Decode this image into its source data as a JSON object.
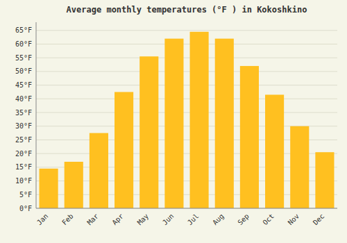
{
  "chart_data": {
    "type": "bar",
    "title": "Average monthly temperatures (°F ) in Kokoshkino",
    "categories": [
      "Jan",
      "Feb",
      "Mar",
      "Apr",
      "May",
      "Jun",
      "Jul",
      "Aug",
      "Sep",
      "Oct",
      "Nov",
      "Dec"
    ],
    "values": [
      14.5,
      17.0,
      27.5,
      42.5,
      55.5,
      62.0,
      64.5,
      62.0,
      52.0,
      41.5,
      30.0,
      20.5
    ],
    "color": "#FFC020",
    "ylim": [
      0,
      68
    ],
    "yticks": [
      {
        "value": 0,
        "label": "0°F"
      },
      {
        "value": 5,
        "label": "5°F"
      },
      {
        "value": 10,
        "label": "10°F"
      },
      {
        "value": 15,
        "label": "15°F"
      },
      {
        "value": 20,
        "label": "20°F"
      },
      {
        "value": 25,
        "label": "25°F"
      },
      {
        "value": 30,
        "label": "30°F"
      },
      {
        "value": 35,
        "label": "35°F"
      },
      {
        "value": 40,
        "label": "40°F"
      },
      {
        "value": 45,
        "label": "45°F"
      },
      {
        "value": 50,
        "label": "50°F"
      },
      {
        "value": 55,
        "label": "55°F"
      },
      {
        "value": 60,
        "label": "60°F"
      },
      {
        "value": 65,
        "label": "65°F"
      }
    ],
    "grid": true
  }
}
